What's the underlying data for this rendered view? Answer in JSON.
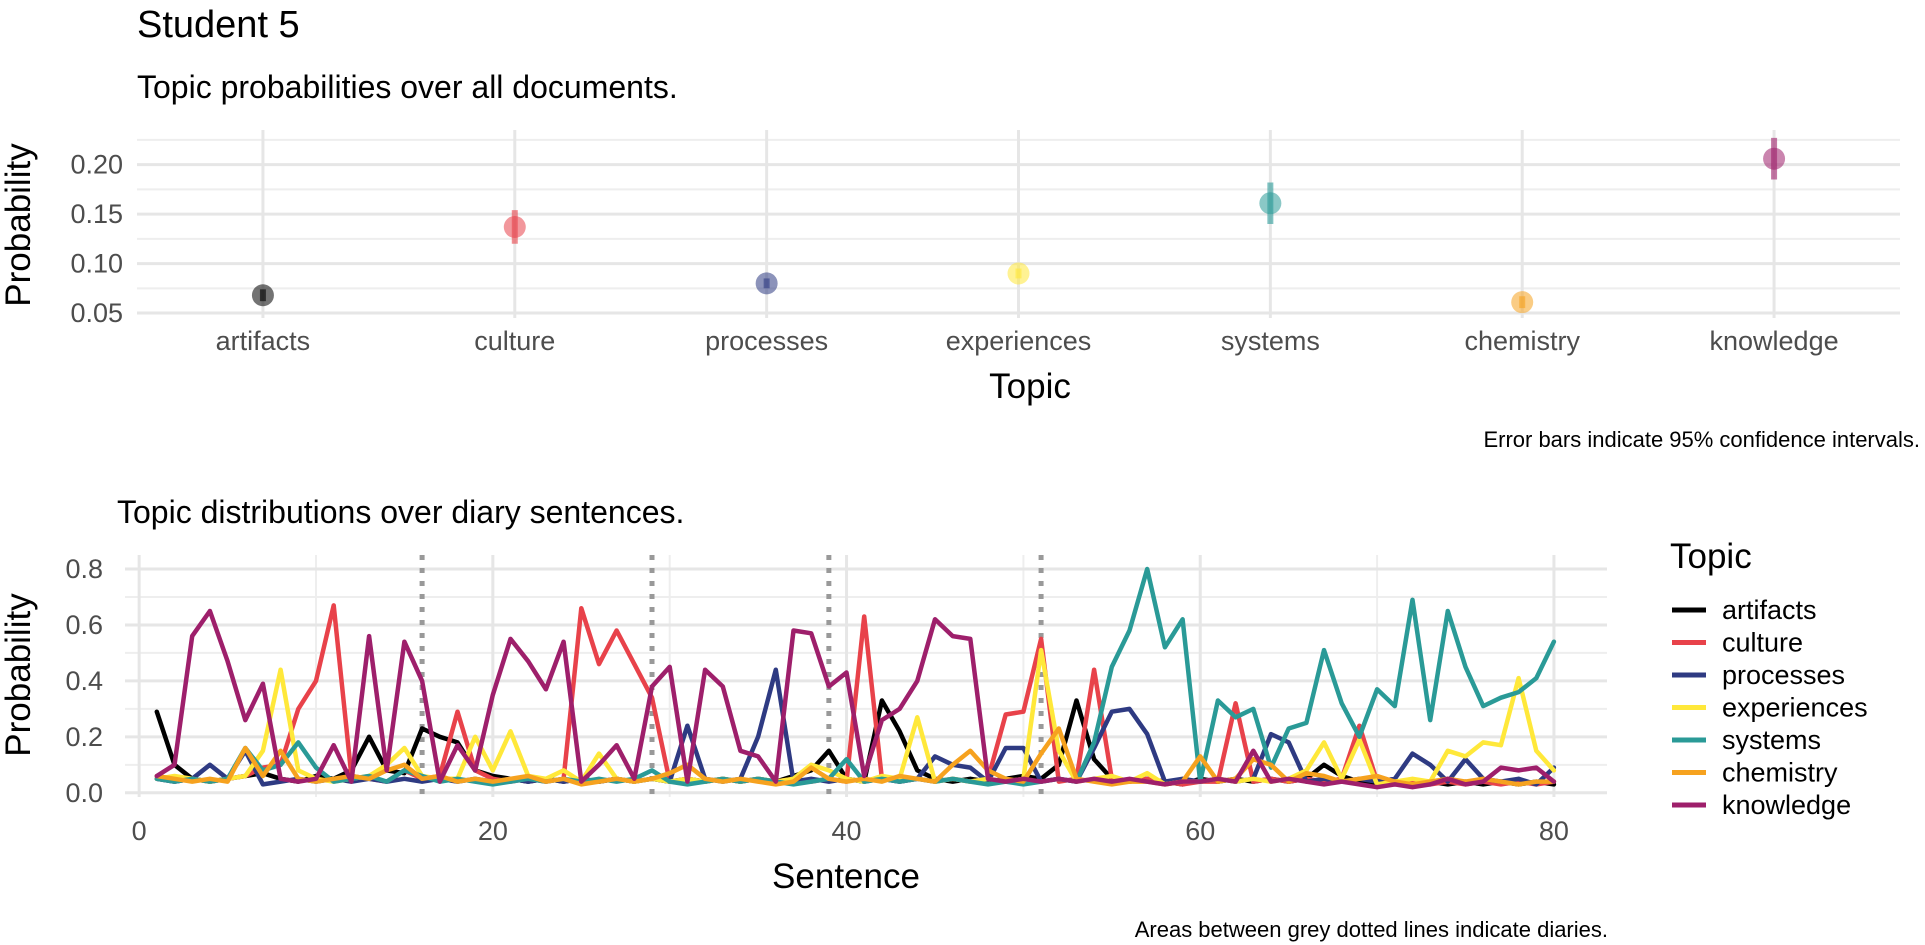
{
  "page": {
    "title": "Student 5",
    "caption_top": "Error bars indicate 95% confidence intervals.",
    "caption_bottom": "Areas between grey dotted lines indicate diaries."
  },
  "topics": [
    {
      "name": "artifacts",
      "color": "#000000"
    },
    {
      "name": "culture",
      "color": "#e8424a"
    },
    {
      "name": "processes",
      "color": "#2e3a82"
    },
    {
      "name": "experiences",
      "color": "#ffe83a"
    },
    {
      "name": "systems",
      "color": "#2a9a97"
    },
    {
      "name": "chemistry",
      "color": "#f6a21f"
    },
    {
      "name": "knowledge",
      "color": "#9e1f6b"
    }
  ],
  "chart_data": [
    {
      "type": "scatter",
      "title": "Topic probabilities over all documents.",
      "xlabel": "Topic",
      "ylabel": "Probability",
      "categories": [
        "artifacts",
        "culture",
        "processes",
        "experiences",
        "systems",
        "chemistry",
        "knowledge"
      ],
      "values": [
        0.068,
        0.137,
        0.08,
        0.09,
        0.161,
        0.061,
        0.206
      ],
      "ci_low": [
        0.062,
        0.12,
        0.075,
        0.085,
        0.14,
        0.055,
        0.185
      ],
      "ci_high": [
        0.074,
        0.154,
        0.085,
        0.095,
        0.182,
        0.067,
        0.227
      ],
      "yticks": [
        "0.05",
        "0.10",
        "0.15",
        "0.20"
      ],
      "ylim": [
        0.045,
        0.235
      ],
      "grid": true
    },
    {
      "type": "line",
      "title": "Topic distributions over diary sentences.",
      "xlabel": "Sentence",
      "ylabel": "Probability",
      "legend_title": "Topic",
      "legend_position": "right",
      "xlim": [
        0,
        83
      ],
      "ylim": [
        0,
        0.85
      ],
      "xticks": [
        "0",
        "20",
        "40",
        "60",
        "80"
      ],
      "yticks": [
        "0.0",
        "0.2",
        "0.4",
        "0.6",
        "0.8"
      ],
      "diary_boundaries": [
        16,
        29,
        39,
        51
      ],
      "x": [
        1,
        2,
        3,
        4,
        5,
        6,
        7,
        8,
        9,
        10,
        11,
        12,
        13,
        14,
        15,
        16,
        17,
        18,
        19,
        20,
        21,
        22,
        23,
        24,
        25,
        26,
        27,
        28,
        29,
        30,
        31,
        32,
        33,
        34,
        35,
        36,
        37,
        38,
        39,
        40,
        41,
        42,
        43,
        44,
        45,
        46,
        47,
        48,
        49,
        50,
        51,
        52,
        53,
        54,
        55,
        56,
        57,
        58,
        59,
        60,
        61,
        62,
        63,
        64,
        65,
        66,
        67,
        68,
        69,
        70,
        71,
        72,
        73,
        74,
        75,
        76,
        77,
        78,
        79,
        80
      ],
      "series": [
        {
          "name": "artifacts",
          "values": [
            0.29,
            0.1,
            0.05,
            0.04,
            0.05,
            0.06,
            0.07,
            0.05,
            0.04,
            0.06,
            0.05,
            0.08,
            0.2,
            0.08,
            0.07,
            0.23,
            0.2,
            0.18,
            0.08,
            0.06,
            0.05,
            0.04,
            0.05,
            0.04,
            0.05,
            0.04,
            0.05,
            0.04,
            0.05,
            0.04,
            0.05,
            0.04,
            0.05,
            0.04,
            0.05,
            0.04,
            0.06,
            0.08,
            0.15,
            0.05,
            0.04,
            0.33,
            0.22,
            0.08,
            0.05,
            0.04,
            0.05,
            0.04,
            0.05,
            0.06,
            0.05,
            0.1,
            0.33,
            0.12,
            0.05,
            0.04,
            0.05,
            0.04,
            0.03,
            0.05,
            0.04,
            0.05,
            0.04,
            0.05,
            0.04,
            0.05,
            0.1,
            0.06,
            0.04,
            0.03,
            0.04,
            0.03,
            0.04,
            0.03,
            0.04,
            0.03,
            0.04,
            0.03,
            0.04,
            0.03
          ]
        },
        {
          "name": "culture",
          "values": [
            0.05,
            0.04,
            0.05,
            0.04,
            0.05,
            0.06,
            0.09,
            0.1,
            0.3,
            0.4,
            0.67,
            0.06,
            0.05,
            0.04,
            0.08,
            0.05,
            0.06,
            0.29,
            0.08,
            0.05,
            0.04,
            0.05,
            0.04,
            0.05,
            0.66,
            0.46,
            0.58,
            0.46,
            0.34,
            0.04,
            0.05,
            0.04,
            0.05,
            0.04,
            0.05,
            0.04,
            0.05,
            0.04,
            0.05,
            0.04,
            0.63,
            0.05,
            0.04,
            0.05,
            0.04,
            0.05,
            0.04,
            0.05,
            0.28,
            0.29,
            0.55,
            0.04,
            0.05,
            0.44,
            0.05,
            0.04,
            0.05,
            0.04,
            0.03,
            0.04,
            0.04,
            0.32,
            0.04,
            0.05,
            0.04,
            0.05,
            0.04,
            0.05,
            0.24,
            0.04,
            0.03,
            0.04,
            0.03,
            0.04,
            0.03,
            0.04,
            0.03,
            0.04,
            0.03,
            0.04
          ]
        },
        {
          "name": "processes",
          "values": [
            0.05,
            0.04,
            0.05,
            0.1,
            0.05,
            0.15,
            0.03,
            0.04,
            0.05,
            0.04,
            0.05,
            0.04,
            0.05,
            0.04,
            0.05,
            0.04,
            0.05,
            0.04,
            0.05,
            0.04,
            0.05,
            0.04,
            0.05,
            0.04,
            0.05,
            0.04,
            0.05,
            0.04,
            0.05,
            0.04,
            0.24,
            0.05,
            0.04,
            0.05,
            0.2,
            0.44,
            0.04,
            0.05,
            0.04,
            0.05,
            0.04,
            0.05,
            0.04,
            0.05,
            0.13,
            0.1,
            0.09,
            0.04,
            0.16,
            0.16,
            0.04,
            0.05,
            0.04,
            0.16,
            0.29,
            0.3,
            0.21,
            0.04,
            0.05,
            0.04,
            0.05,
            0.04,
            0.05,
            0.21,
            0.18,
            0.04,
            0.05,
            0.04,
            0.05,
            0.04,
            0.05,
            0.14,
            0.1,
            0.04,
            0.12,
            0.05,
            0.04,
            0.05,
            0.03,
            0.09
          ]
        },
        {
          "name": "experiences",
          "values": [
            0.05,
            0.06,
            0.05,
            0.04,
            0.05,
            0.06,
            0.15,
            0.44,
            0.08,
            0.05,
            0.04,
            0.05,
            0.06,
            0.1,
            0.16,
            0.06,
            0.05,
            0.05,
            0.2,
            0.08,
            0.22,
            0.06,
            0.05,
            0.08,
            0.04,
            0.14,
            0.05,
            0.04,
            0.05,
            0.04,
            0.05,
            0.04,
            0.05,
            0.04,
            0.05,
            0.04,
            0.05,
            0.1,
            0.08,
            0.05,
            0.04,
            0.06,
            0.05,
            0.27,
            0.04,
            0.05,
            0.04,
            0.05,
            0.04,
            0.05,
            0.51,
            0.15,
            0.04,
            0.05,
            0.06,
            0.04,
            0.07,
            0.03,
            0.04,
            0.04,
            0.05,
            0.04,
            0.05,
            0.04,
            0.05,
            0.08,
            0.18,
            0.05,
            0.19,
            0.03,
            0.04,
            0.05,
            0.04,
            0.15,
            0.13,
            0.18,
            0.17,
            0.41,
            0.15,
            0.08
          ]
        },
        {
          "name": "systems",
          "values": [
            0.05,
            0.04,
            0.05,
            0.04,
            0.05,
            0.16,
            0.08,
            0.1,
            0.18,
            0.09,
            0.04,
            0.05,
            0.06,
            0.04,
            0.08,
            0.06,
            0.04,
            0.05,
            0.04,
            0.03,
            0.04,
            0.05,
            0.04,
            0.05,
            0.04,
            0.05,
            0.04,
            0.05,
            0.08,
            0.04,
            0.03,
            0.04,
            0.05,
            0.04,
            0.05,
            0.04,
            0.03,
            0.04,
            0.05,
            0.12,
            0.04,
            0.05,
            0.04,
            0.05,
            0.04,
            0.05,
            0.04,
            0.03,
            0.04,
            0.03,
            0.04,
            0.05,
            0.04,
            0.18,
            0.45,
            0.58,
            0.8,
            0.52,
            0.62,
            0.04,
            0.33,
            0.27,
            0.3,
            0.09,
            0.23,
            0.25,
            0.51,
            0.32,
            0.2,
            0.37,
            0.31,
            0.69,
            0.26,
            0.65,
            0.45,
            0.31,
            0.34,
            0.36,
            0.41,
            0.54
          ]
        },
        {
          "name": "chemistry",
          "values": [
            0.06,
            0.05,
            0.04,
            0.05,
            0.04,
            0.16,
            0.06,
            0.15,
            0.05,
            0.04,
            0.05,
            0.06,
            0.05,
            0.08,
            0.1,
            0.05,
            0.06,
            0.04,
            0.05,
            0.04,
            0.05,
            0.06,
            0.04,
            0.05,
            0.03,
            0.04,
            0.05,
            0.04,
            0.05,
            0.07,
            0.1,
            0.05,
            0.04,
            0.05,
            0.04,
            0.03,
            0.04,
            0.09,
            0.05,
            0.04,
            0.05,
            0.04,
            0.06,
            0.05,
            0.04,
            0.1,
            0.15,
            0.08,
            0.05,
            0.04,
            0.14,
            0.23,
            0.05,
            0.04,
            0.03,
            0.04,
            0.04,
            0.03,
            0.04,
            0.13,
            0.04,
            0.05,
            0.12,
            0.1,
            0.04,
            0.07,
            0.06,
            0.04,
            0.05,
            0.06,
            0.04,
            0.03,
            0.04,
            0.05,
            0.04,
            0.05,
            0.04,
            0.03,
            0.04,
            0.04
          ]
        },
        {
          "name": "knowledge",
          "values": [
            0.06,
            0.1,
            0.56,
            0.65,
            0.47,
            0.26,
            0.39,
            0.05,
            0.04,
            0.05,
            0.17,
            0.04,
            0.56,
            0.08,
            0.54,
            0.4,
            0.04,
            0.17,
            0.08,
            0.35,
            0.55,
            0.47,
            0.37,
            0.54,
            0.04,
            0.1,
            0.17,
            0.05,
            0.38,
            0.45,
            0.04,
            0.44,
            0.38,
            0.15,
            0.13,
            0.04,
            0.58,
            0.57,
            0.38,
            0.43,
            0.06,
            0.26,
            0.3,
            0.4,
            0.62,
            0.56,
            0.55,
            0.05,
            0.04,
            0.05,
            0.04,
            0.05,
            0.04,
            0.05,
            0.04,
            0.05,
            0.04,
            0.03,
            0.04,
            0.04,
            0.05,
            0.04,
            0.15,
            0.04,
            0.05,
            0.04,
            0.03,
            0.04,
            0.03,
            0.02,
            0.03,
            0.02,
            0.03,
            0.05,
            0.03,
            0.04,
            0.09,
            0.08,
            0.09,
            0.04
          ]
        }
      ]
    }
  ]
}
